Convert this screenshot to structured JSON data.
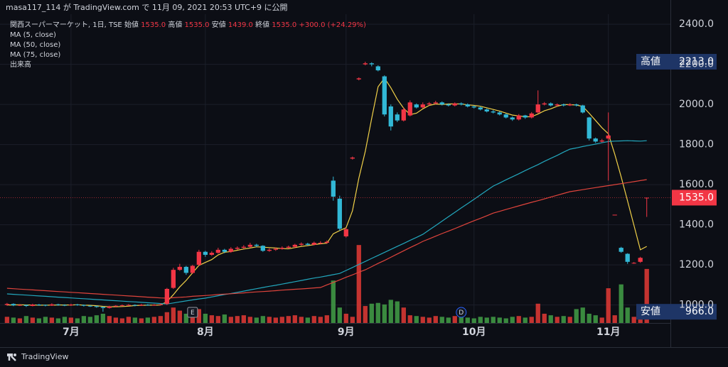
{
  "header": "masa117_114 が TradingView.com で 11月 09, 2021 20:53 UTC+9 に公開",
  "footer": "TradingView",
  "chart_data": {
    "type": "candlestick",
    "symbol": "関西スーパーマーケット, 1日, TSE",
    "legend_ohlc": [
      {
        "label": "始値",
        "value": "1535.0"
      },
      {
        "label": "高値",
        "value": "1535.0"
      },
      {
        "label": "安値",
        "value": "1439.0"
      },
      {
        "label": "終値",
        "value": "1535.0"
      }
    ],
    "change": "+300.0 (+24.29%)",
    "up_color": "#f23645",
    "down_color": "#32b8d6",
    "volume_up_color": "#e53935",
    "volume_down_color": "#43a047",
    "open": [
      1000,
      1005,
      998,
      1000,
      995,
      1002,
      1000,
      997,
      1003,
      1000,
      998,
      1002,
      1000,
      996,
      994,
      990,
      985,
      992,
      996,
      998,
      1000,
      997,
      1001,
      999,
      1000,
      1005,
      1085,
      1175,
      1190,
      1160,
      1200,
      1265,
      1250,
      1260,
      1275,
      1265,
      1280,
      1285,
      1290,
      1300,
      1295,
      1270,
      1275,
      1280,
      1285,
      1290,
      1300,
      1305,
      1300,
      1310,
      1310,
      1620,
      1530,
      1342,
      1730,
      2125,
      2200,
      2205,
      2190,
      2140,
      1990,
      1950,
      1920,
      1945,
      2000,
      1985,
      2000,
      2005,
      2010,
      2000,
      1995,
      2005,
      2000,
      1990,
      1985,
      1975,
      1965,
      1960,
      1950,
      1935,
      1925,
      1945,
      1935,
      1960,
      2000,
      2005,
      1995,
      2000,
      1995,
      2000,
      1995,
      1935,
      1830,
      1815,
      1830,
      1450,
      1285,
      1255,
      1210,
      1215,
      1535
    ],
    "high": [
      1010,
      1008,
      1004,
      1002,
      1006,
      1005,
      1002,
      1008,
      1006,
      1003,
      1006,
      1005,
      1002,
      999,
      996,
      992,
      996,
      999,
      1002,
      1004,
      1003,
      1005,
      1004,
      1004,
      1008,
      1085,
      1185,
      1205,
      1195,
      1200,
      1275,
      1270,
      1268,
      1285,
      1280,
      1288,
      1292,
      1298,
      1310,
      1305,
      1298,
      1282,
      1286,
      1292,
      1296,
      1305,
      1312,
      1310,
      1316,
      1318,
      1322,
      1640,
      1545,
      1385,
      1740,
      2135,
      2213,
      2210,
      2195,
      2145,
      2000,
      1960,
      1985,
      2020,
      2005,
      2010,
      2012,
      2018,
      2015,
      2005,
      2010,
      2010,
      2005,
      1995,
      1990,
      1980,
      1972,
      1965,
      1955,
      1940,
      1952,
      1948,
      1962,
      2070,
      2012,
      2010,
      2005,
      2004,
      2006,
      2004,
      1998,
      1938,
      1835,
      1828,
      1960,
      1450,
      1290,
      1258,
      1214,
      1240,
      1535
    ],
    "low": [
      996,
      994,
      995,
      990,
      993,
      996,
      993,
      995,
      996,
      994,
      995,
      996,
      992,
      990,
      986,
      966,
      982,
      990,
      994,
      996,
      993,
      995,
      996,
      996,
      998,
      1000,
      1080,
      1170,
      1150,
      1155,
      1195,
      1240,
      1245,
      1255,
      1258,
      1260,
      1275,
      1280,
      1285,
      1288,
      1265,
      1265,
      1270,
      1276,
      1280,
      1285,
      1295,
      1296,
      1298,
      1302,
      1305,
      1520,
      1370,
      1336,
      1725,
      2120,
      2195,
      2190,
      2165,
      1940,
      1870,
      1912,
      1915,
      1940,
      1980,
      1980,
      1995,
      2000,
      1995,
      1990,
      1990,
      1995,
      1985,
      1980,
      1970,
      1960,
      1955,
      1945,
      1930,
      1918,
      1920,
      1928,
      1930,
      1955,
      1995,
      1990,
      1990,
      1990,
      1992,
      1990,
      1955,
      1820,
      1808,
      1810,
      1620,
      1450,
      1260,
      1205,
      1205,
      1210,
      1439
    ],
    "close": [
      1005,
      998,
      1000,
      995,
      1002,
      1000,
      997,
      1003,
      1000,
      998,
      1002,
      1000,
      996,
      994,
      990,
      985,
      992,
      996,
      998,
      1000,
      997,
      1001,
      999,
      1000,
      1003,
      1080,
      1175,
      1190,
      1160,
      1195,
      1265,
      1250,
      1260,
      1275,
      1265,
      1280,
      1285,
      1290,
      1300,
      1295,
      1270,
      1275,
      1280,
      1285,
      1290,
      1300,
      1305,
      1300,
      1310,
      1310,
      1315,
      1540,
      1380,
      1378,
      1735,
      2130,
      2205,
      2200,
      2170,
      1950,
      1890,
      1920,
      1975,
      2010,
      1985,
      2000,
      2005,
      2010,
      2000,
      1995,
      2005,
      2000,
      1990,
      1985,
      1975,
      1965,
      1960,
      1950,
      1935,
      1925,
      1945,
      1935,
      1955,
      2000,
      2005,
      1995,
      2000,
      1995,
      2000,
      1995,
      1960,
      1830,
      1815,
      1820,
      1845,
      1450,
      1265,
      1215,
      1210,
      1235,
      1535
    ],
    "volume_name": "出来高",
    "volume": [
      8,
      7,
      6,
      9,
      7,
      6,
      8,
      7,
      6,
      8,
      7,
      6,
      9,
      8,
      10,
      12,
      9,
      7,
      6,
      8,
      7,
      6,
      7,
      8,
      9,
      14,
      20,
      16,
      12,
      10,
      18,
      12,
      10,
      9,
      11,
      8,
      9,
      10,
      8,
      7,
      9,
      8,
      7,
      8,
      9,
      10,
      8,
      7,
      9,
      8,
      10,
      55,
      20,
      12,
      8,
      101,
      22,
      25,
      26,
      24,
      30,
      28,
      20,
      10,
      9,
      8,
      7,
      9,
      8,
      7,
      9,
      8,
      7,
      6,
      8,
      7,
      8,
      7,
      6,
      8,
      9,
      7,
      8,
      25,
      12,
      10,
      8,
      9,
      8,
      18,
      20,
      12,
      10,
      7,
      45,
      10,
      50,
      20,
      8,
      6,
      70
    ],
    "volume_ylim": [
      0,
      400
    ],
    "ma": [
      {
        "name": "MA (5, close)",
        "color": "#f0d048",
        "values": [
          1000,
          1000,
          1001,
          1000,
          1000,
          999,
          999,
          999,
          1000,
          1000,
          1000,
          1001,
          999,
          998,
          996,
          993,
          991,
          991,
          992,
          994,
          997,
          998,
          999,
          999,
          1000,
          1017,
          1051,
          1090,
          1122,
          1160,
          1197,
          1212,
          1226,
          1249,
          1263,
          1266,
          1273,
          1279,
          1284,
          1290,
          1288,
          1286,
          1284,
          1281,
          1280,
          1286,
          1292,
          1296,
          1301,
          1305,
          1308,
          1355,
          1371,
          1385,
          1470,
          1633,
          1766,
          1930,
          2088,
          2131,
          2083,
          2026,
          1981,
          1949,
          1956,
          1978,
          1995,
          2002,
          2000,
          2002,
          2003,
          2002,
          1998,
          1995,
          1991,
          1983,
          1975,
          1967,
          1957,
          1947,
          1943,
          1938,
          1939,
          1952,
          1968,
          1978,
          1991,
          1999,
          1999,
          1997,
          1990,
          1956,
          1920,
          1884,
          1854,
          1752,
          1639,
          1519,
          1397,
          1275,
          1292
        ]
      },
      {
        "name": "MA (50, close)",
        "color": "#22a7bd",
        "values": [
          1055,
          1053,
          1051,
          1049,
          1047,
          1045,
          1043,
          1041,
          1039,
          1037,
          1035,
          1033,
          1031,
          1029,
          1027,
          1025,
          1023,
          1021,
          1019,
          1017,
          1015,
          1013,
          1011,
          1009,
          1007,
          1005,
          1010,
          1015,
          1020,
          1025,
          1030,
          1034,
          1040,
          1046,
          1052,
          1057,
          1063,
          1069,
          1075,
          1081,
          1087,
          1093,
          1098,
          1104,
          1110,
          1116,
          1122,
          1128,
          1134,
          1139,
          1145,
          1151,
          1157,
          1172,
          1187,
          1202,
          1217,
          1232,
          1247,
          1262,
          1277,
          1292,
          1307,
          1322,
          1337,
          1352,
          1374,
          1396,
          1418,
          1440,
          1462,
          1484,
          1505,
          1527,
          1549,
          1571,
          1593,
          1608,
          1624,
          1639,
          1654,
          1670,
          1685,
          1700,
          1716,
          1731,
          1746,
          1762,
          1777,
          1783,
          1790,
          1796,
          1802,
          1809,
          1815,
          1817,
          1818,
          1819,
          1818,
          1817,
          1819
        ]
      },
      {
        "name": "MA (75, close)",
        "color": "#e0443c",
        "values": [
          1083,
          1081,
          1079,
          1077,
          1075,
          1073,
          1071,
          1069,
          1067,
          1065,
          1063,
          1061,
          1059,
          1057,
          1055,
          1053,
          1051,
          1049,
          1047,
          1045,
          1043,
          1041,
          1039,
          1037,
          1035,
          1034,
          1036,
          1038,
          1040,
          1043,
          1045,
          1047,
          1049,
          1052,
          1054,
          1056,
          1058,
          1060,
          1063,
          1065,
          1067,
          1069,
          1071,
          1074,
          1076,
          1078,
          1080,
          1082,
          1085,
          1087,
          1100,
          1112,
          1125,
          1138,
          1150,
          1163,
          1175,
          1191,
          1207,
          1222,
          1238,
          1254,
          1270,
          1286,
          1301,
          1317,
          1330,
          1343,
          1356,
          1368,
          1381,
          1394,
          1407,
          1420,
          1432,
          1445,
          1458,
          1467,
          1476,
          1485,
          1494,
          1503,
          1512,
          1520,
          1529,
          1538,
          1547,
          1556,
          1565,
          1570,
          1575,
          1580,
          1585,
          1590,
          1595,
          1600,
          1605,
          1610,
          1615,
          1620,
          1625
        ]
      }
    ],
    "ylim": [
      910,
      2450
    ],
    "yticks": [
      {
        "value": 1000,
        "label": "1000.0"
      },
      {
        "value": 1200,
        "label": "1200.0"
      },
      {
        "value": 1400,
        "label": "1400.0"
      },
      {
        "value": 1600,
        "label": "1600.0"
      },
      {
        "value": 1800,
        "label": "1800.0"
      },
      {
        "value": 2000,
        "label": "2000.0"
      },
      {
        "value": 2200,
        "label": "2200.0"
      },
      {
        "value": 2400,
        "label": "2400.0"
      }
    ],
    "xlim": [
      -1.1,
      103.7
    ],
    "xticks": [
      {
        "value": 10,
        "label": "7月"
      },
      {
        "value": 31,
        "label": "8月"
      },
      {
        "value": 53,
        "label": "9月"
      },
      {
        "value": 73,
        "label": "10月"
      },
      {
        "value": 94,
        "label": "11月"
      }
    ],
    "grid": true,
    "high_badge": {
      "label": "高値",
      "value": 2213,
      "value_label": "2213.0",
      "color": "#1e3566"
    },
    "low_badge": {
      "label": "安値",
      "value": 966,
      "value_label": "966.0",
      "color": "#1e3566"
    },
    "last_price": {
      "value": 1535,
      "label": "1535.0",
      "color": "#f23645"
    },
    "markers": [
      {
        "text": "E",
        "x": 29
      },
      {
        "text": "D",
        "x": 71
      }
    ]
  }
}
